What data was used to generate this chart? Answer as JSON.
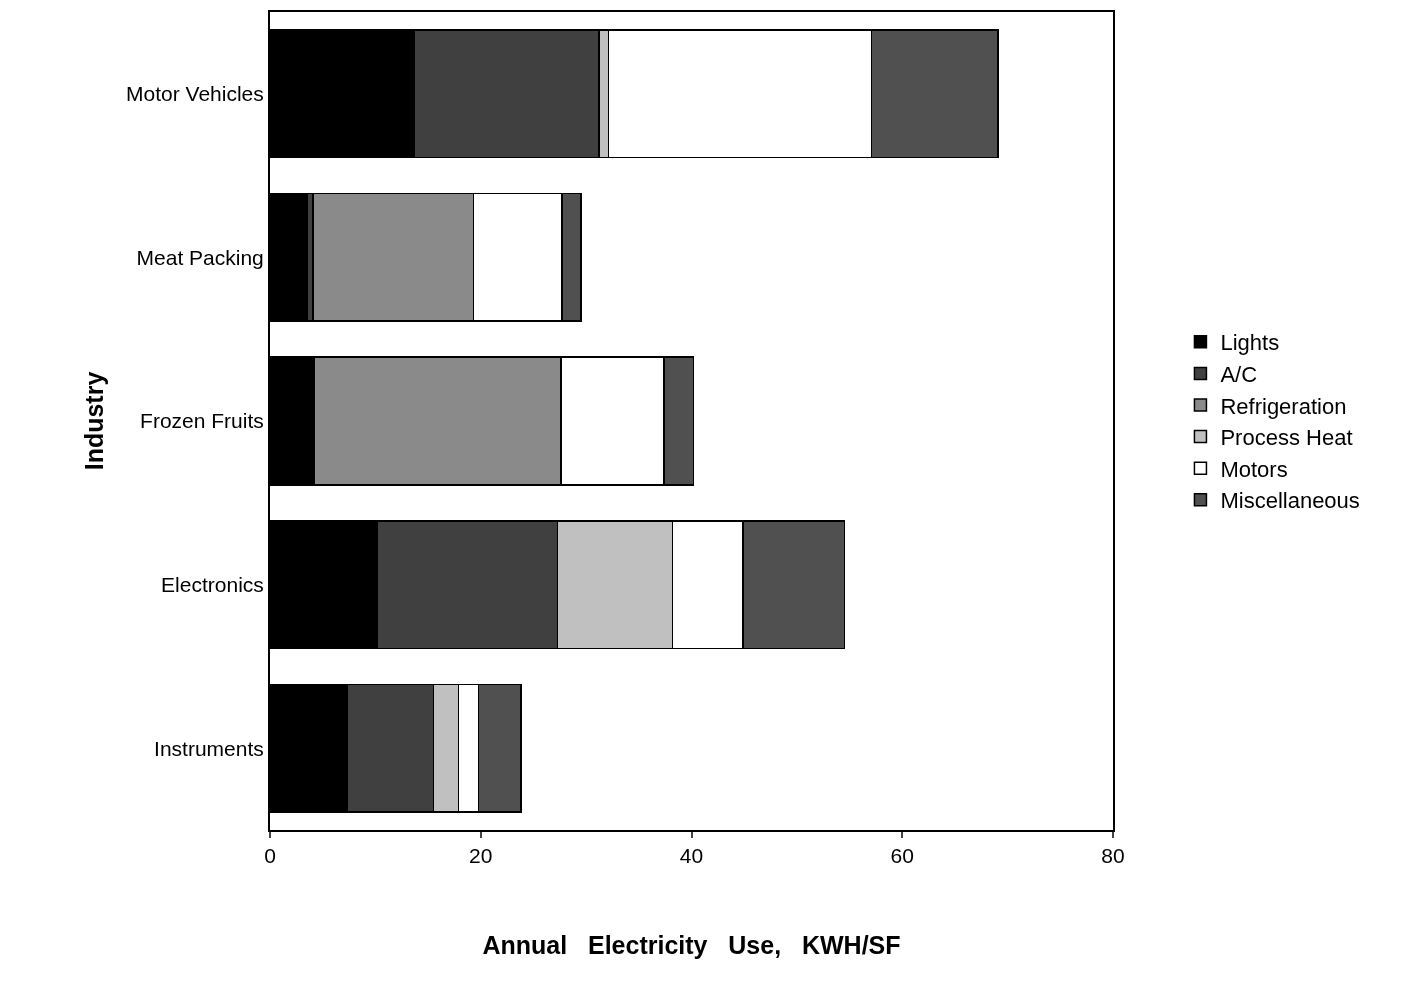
{
  "chart_data": {
    "type": "bar",
    "orientation": "horizontal",
    "stacked": true,
    "xlabel": "Annual   Electricity   Use,   KWH/SF",
    "ylabel": "Industry",
    "categories": [
      "Motor Vehicles",
      "Meat Packing",
      "Frozen Fruits",
      "Electronics",
      "Instruments"
    ],
    "series": [
      {
        "name": "Lights",
        "color": "#000000",
        "values": [
          13.7,
          3.5,
          4.2,
          10.2,
          7.3
        ]
      },
      {
        "name": "A/C",
        "color": "#404040",
        "values": [
          17.5,
          0.6,
          0,
          17.1,
          8.2
        ]
      },
      {
        "name": "Refrigeration",
        "color": "#8a8a8a",
        "values": [
          0,
          15.2,
          23.4,
          0,
          0
        ]
      },
      {
        "name": "Process Heat",
        "color": "#c0c0c0",
        "values": [
          0.9,
          0,
          0,
          10.9,
          2.4
        ]
      },
      {
        "name": "Motors",
        "color": "#ffffff",
        "values": [
          25,
          8.4,
          9.8,
          6.7,
          1.9
        ]
      },
      {
        "name": "Miscellaneous",
        "color": "#505050",
        "values": [
          12,
          1.8,
          2.8,
          9.6,
          4.0
        ]
      }
    ],
    "xlim": [
      0,
      80
    ],
    "xticks": [
      0,
      20,
      40,
      60,
      80
    ],
    "legend": "right"
  }
}
